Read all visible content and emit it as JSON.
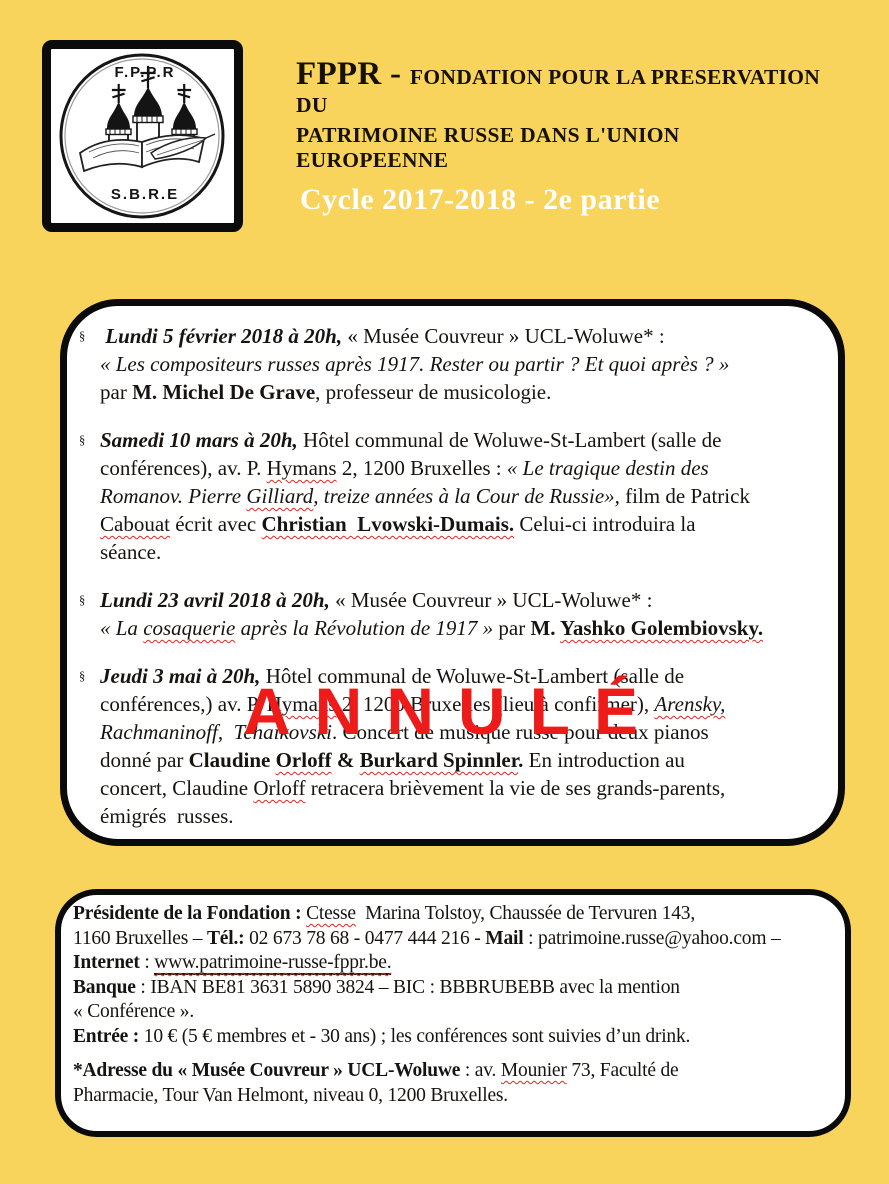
{
  "page": {
    "background_color": "#F8D45C",
    "stamp_color": "#EE1B1B"
  },
  "logo": {
    "top_text": "F.P.P.R",
    "bottom_text": "S.B.R.E"
  },
  "header": {
    "acronym": "FPPR - ",
    "name_line1": "FONDATION POUR LA PRESERVATION DU",
    "name_line2": "PATRIMOINE RUSSE DANS  L'UNION EUROPEENNE",
    "cycle": "Cycle  2017-2018 - 2e partie"
  },
  "stamp": {
    "text": "ANNULÉ"
  },
  "events": [
    {
      "bullet": "§",
      "segments": [
        {
          "t": " Lundi 5 février 2018 à 20h,",
          "s": "bi"
        },
        {
          "t": " « Musée Couvreur » UCL-Woluwe* :",
          "s": "r"
        },
        {
          "br": true
        },
        {
          "t": "« Les compositeurs russes après 1917. Rester ou partir ? Et quoi après ? »",
          "s": "i"
        },
        {
          "br": true
        },
        {
          "t": "par ",
          "s": "r"
        },
        {
          "t": "M. Michel De Grave",
          "s": "b"
        },
        {
          "t": ", professeur de musicologie.",
          "s": "r"
        }
      ]
    },
    {
      "bullet": "§",
      "segments": [
        {
          "t": "Samedi 10 mars à 20h,",
          "s": "bi"
        },
        {
          "t": " Hôtel communal de Woluwe-St-Lambert (salle de",
          "s": "r"
        },
        {
          "br": true
        },
        {
          "t": "conférences), av. P. ",
          "s": "r"
        },
        {
          "t": "Hymans",
          "s": "r sq"
        },
        {
          "t": " 2, 1200 Bruxelles : ",
          "s": "r"
        },
        {
          "t": "« Le tragique destin des",
          "s": "i"
        },
        {
          "br": true
        },
        {
          "t": "Romanov. Pierre ",
          "s": "i"
        },
        {
          "t": "Gilliard",
          "s": "i sq"
        },
        {
          "t": ", treize années à la Cour de Russie»,",
          "s": "i"
        },
        {
          "t": " film de Patrick",
          "s": "r"
        },
        {
          "br": true
        },
        {
          "t": "Cabouat",
          "s": "r sq"
        },
        {
          "t": " écrit avec ",
          "s": "r"
        },
        {
          "t": "Christian  Lvowski-Dumais.",
          "s": "b sq"
        },
        {
          "t": " Celui-ci introduira la",
          "s": "r"
        },
        {
          "br": true
        },
        {
          "t": "séance.",
          "s": "r"
        }
      ]
    },
    {
      "bullet": "§",
      "segments": [
        {
          "t": "Lundi 23 avril 2018 à 20h,",
          "s": "bi"
        },
        {
          "t": " « Musée Couvreur » UCL-Woluwe* :",
          "s": "r"
        },
        {
          "br": true
        },
        {
          "t": "« La ",
          "s": "i"
        },
        {
          "t": "cosaquerie",
          "s": "i sq"
        },
        {
          "t": " après la Révolution de 1917 »",
          "s": "i"
        },
        {
          "t": " par ",
          "s": "r"
        },
        {
          "t": "M. ",
          "s": "b"
        },
        {
          "t": "Yashko Golembiovsky.",
          "s": "b sq"
        }
      ]
    },
    {
      "bullet": "§",
      "segments": [
        {
          "t": "Jeudi 3 mai à 20h,",
          "s": "bi"
        },
        {
          "t": " Hôtel communal de Woluwe-St-Lambert (salle de",
          "s": "r"
        },
        {
          "br": true
        },
        {
          "t": "conférences,) av. P. ",
          "s": "r"
        },
        {
          "t": "Hymans",
          "s": "r sq"
        },
        {
          "t": " 2, 1200 Bruxelles (lieu à confirmer), ",
          "s": "r"
        },
        {
          "t": "Arensky,",
          "s": "i sq"
        },
        {
          "br": true
        },
        {
          "t": "Rachmaninoff,  Tchaikovski",
          "s": "i"
        },
        {
          "t": ". Concert de musique russe pour deux pianos",
          "s": "r"
        },
        {
          "br": true
        },
        {
          "t": "donné par ",
          "s": "r"
        },
        {
          "t": "Claudine ",
          "s": "b"
        },
        {
          "t": "Orloff",
          "s": "b sq"
        },
        {
          "t": " & ",
          "s": "b"
        },
        {
          "t": "Burkard Spinnler",
          "s": "b sq"
        },
        {
          "t": ".",
          "s": "b"
        },
        {
          "t": " En introduction au",
          "s": "r"
        },
        {
          "br": true
        },
        {
          "t": "concert, Claudine ",
          "s": "r"
        },
        {
          "t": "Orloff",
          "s": "r sq"
        },
        {
          "t": " retracera brièvement la vie de ses grands-parents,",
          "s": "r"
        },
        {
          "br": true
        },
        {
          "t": "émigrés  russes.",
          "s": "r"
        }
      ]
    }
  ],
  "footer": {
    "segments": [
      {
        "t": "Présidente de la Fondation : ",
        "s": "b"
      },
      {
        "t": "Ctesse",
        "s": "r sq"
      },
      {
        "t": "  Marina Tolstoy, Chaussée de Tervuren 143,",
        "s": "r"
      },
      {
        "br": true
      },
      {
        "t": "1160 Bruxelles – ",
        "s": "r"
      },
      {
        "t": "Tél.:",
        "s": "b"
      },
      {
        "t": " 02 673 78 68 - 0477 444 216 - ",
        "s": "r"
      },
      {
        "t": "Mail",
        "s": "b"
      },
      {
        "t": " : patrimoine.russe@yahoo.com –",
        "s": "r"
      },
      {
        "br": true
      },
      {
        "t": "Internet",
        "s": "b"
      },
      {
        "t": " : ",
        "s": "r"
      },
      {
        "t": "www.patrimoine-russe-fppr.be.",
        "s": "r u sq",
        "n": "website-link",
        "x": true
      },
      {
        "br": true
      },
      {
        "t": "Banque",
        "s": "b"
      },
      {
        "t": " : IBAN BE81 3631 5890 3824 – BIC : BBBRUBEBB avec la mention",
        "s": "r"
      },
      {
        "br": true
      },
      {
        "t": "« Conférence ».",
        "s": "r"
      },
      {
        "br": true
      },
      {
        "t": "Entrée :",
        "s": "b"
      },
      {
        "t": " 10 € (5 € membres et - 30 ans) ; les conférences sont suivies d’un drink.",
        "s": "r"
      },
      {
        "br": true
      },
      {
        "gap": true
      },
      {
        "t": "*Adresse du « Musée Couvreur » UCL-Woluwe",
        "s": "b"
      },
      {
        "t": " : av. ",
        "s": "r"
      },
      {
        "t": "Mounier",
        "s": "r sq"
      },
      {
        "t": " 73, Faculté de",
        "s": "r"
      },
      {
        "br": true
      },
      {
        "t": "Pharmacie, Tour Van Helmont, niveau 0, 1200 Bruxelles.",
        "s": "r"
      }
    ]
  }
}
